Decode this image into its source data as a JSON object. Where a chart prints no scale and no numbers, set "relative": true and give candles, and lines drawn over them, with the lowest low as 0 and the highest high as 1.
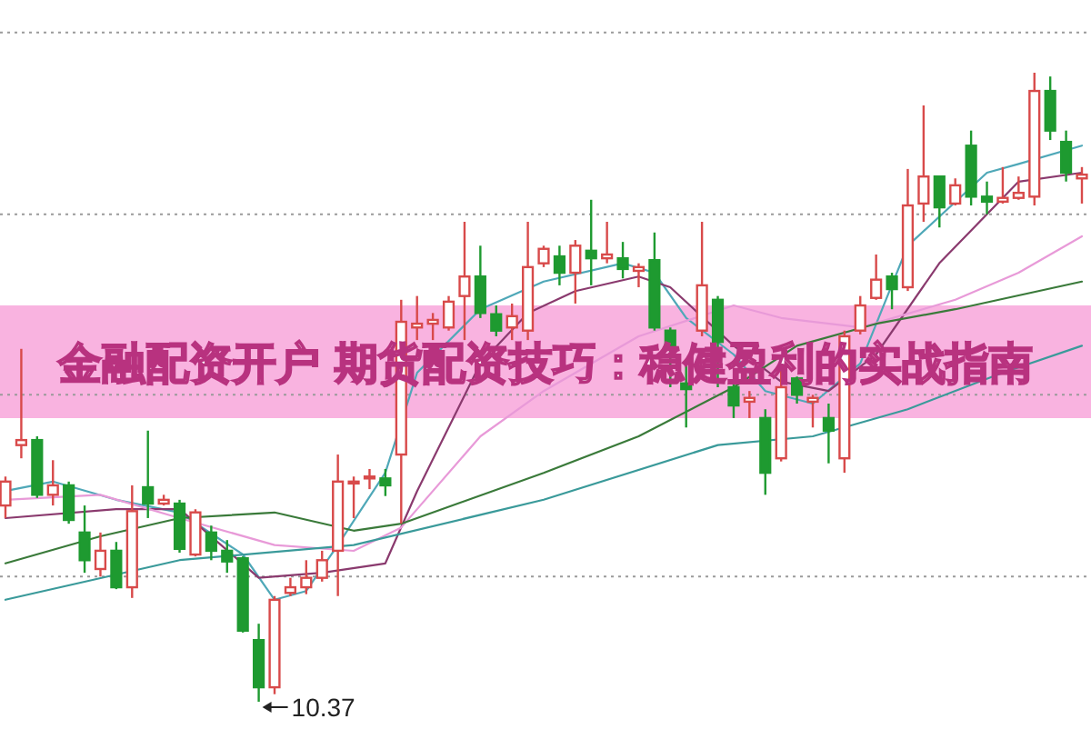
{
  "chart_data": {
    "type": "candlestick",
    "relative": true,
    "title": "金融配资开户 期货配资技巧：稳健盈利的实战指南",
    "ref_lines": [
      {
        "axis": "y",
        "value": 1.064,
        "color": "#9a9a9a",
        "line_style": "dotted"
      },
      {
        "axis": "y",
        "value": 0.775,
        "color": "#9a9a9a",
        "line_style": "dotted"
      },
      {
        "axis": "y",
        "value": 0.488,
        "color": "#9a9a9a",
        "line_style": "dotted"
      },
      {
        "axis": "y",
        "value": 0.199,
        "color": "#9a9a9a",
        "line_style": "dotted"
      }
    ],
    "categories": [
      null,
      null,
      null,
      null,
      null,
      null,
      null,
      null,
      null,
      null,
      null,
      null,
      null,
      null,
      null,
      null,
      null,
      null,
      null,
      null,
      null,
      null,
      null,
      null,
      null,
      null,
      null,
      null,
      null,
      null,
      null,
      null,
      null,
      null,
      null,
      null,
      null,
      null,
      null,
      null,
      null,
      null,
      null,
      null,
      null,
      null,
      null,
      null,
      null,
      null,
      null,
      null,
      null,
      null,
      null,
      null,
      null,
      null,
      null,
      null,
      null,
      null,
      null,
      null,
      null,
      null,
      null,
      null,
      null
    ],
    "ohlc": [
      [
        0.312,
        0.358,
        0.292,
        0.35
      ],
      [
        0.408,
        0.561,
        0.387,
        0.416
      ],
      [
        0.416,
        0.422,
        0.324,
        0.329
      ],
      [
        0.329,
        0.384,
        0.312,
        0.344
      ],
      [
        0.344,
        0.35,
        0.283,
        0.289
      ],
      [
        0.269,
        0.312,
        0.205,
        0.225
      ],
      [
        0.211,
        0.269,
        0.199,
        0.24
      ],
      [
        0.24,
        0.254,
        0.179,
        0.182
      ],
      [
        0.182,
        0.344,
        0.165,
        0.303
      ],
      [
        0.341,
        0.431,
        0.292,
        0.315
      ],
      [
        0.315,
        0.329,
        0.312,
        0.321
      ],
      [
        0.315,
        0.321,
        0.237,
        0.243
      ],
      [
        0.234,
        0.306,
        0.231,
        0.301
      ],
      [
        0.269,
        0.28,
        0.225,
        0.24
      ],
      [
        0.24,
        0.257,
        0.205,
        0.223
      ],
      [
        0.228,
        0.231,
        0.11,
        0.113
      ],
      [
        0.098,
        0.124,
        0,
        0.023
      ],
      [
        0.023,
        0.168,
        0.012,
        0.162
      ],
      [
        0.173,
        0.197,
        0.168,
        0.182
      ],
      [
        0.182,
        0.225,
        0.171,
        0.197
      ],
      [
        0.197,
        0.24,
        0.191,
        0.225
      ],
      [
        0.24,
        0.393,
        0.168,
        0.35
      ],
      [
        0.347,
        0.358,
        0.292,
        0.35
      ],
      [
        0.355,
        0.37,
        0.338,
        0.358
      ],
      [
        0.355,
        0.37,
        0.327,
        0.344
      ],
      [
        0.393,
        0.639,
        0.283,
        0.604
      ],
      [
        0.595,
        0.645,
        0.575,
        0.601
      ],
      [
        0.601,
        0.618,
        0.575,
        0.607
      ],
      [
        0.595,
        0.645,
        0.59,
        0.636
      ],
      [
        0.645,
        0.763,
        0.575,
        0.676
      ],
      [
        0.676,
        0.725,
        0.61,
        0.618
      ],
      [
        0.616,
        0.63,
        0.581,
        0.59
      ],
      [
        0.595,
        0.633,
        0.575,
        0.613
      ],
      [
        0.59,
        0.763,
        0.575,
        0.691
      ],
      [
        0.697,
        0.725,
        0.691,
        0.72
      ],
      [
        0.708,
        0.725,
        0.662,
        0.682
      ],
      [
        0.682,
        0.734,
        0.633,
        0.725
      ],
      [
        0.717,
        0.798,
        0.662,
        0.705
      ],
      [
        0.705,
        0.763,
        0.697,
        0.711
      ],
      [
        0.705,
        0.731,
        0.673,
        0.688
      ],
      [
        0.685,
        0.697,
        0.659,
        0.691
      ],
      [
        0.702,
        0.746,
        0.59,
        0.595
      ],
      [
        0.59,
        0.595,
        0.5,
        0.566
      ],
      [
        0.506,
        0.538,
        0.436,
        0.497
      ],
      [
        0.59,
        0.763,
        0.581,
        0.662
      ],
      [
        0.639,
        0.645,
        0.5,
        0.572
      ],
      [
        0.5,
        0.509,
        0.451,
        0.471
      ],
      [
        0.477,
        0.494,
        0.451,
        0.483
      ],
      [
        0.451,
        0.465,
        0.329,
        0.364
      ],
      [
        0.387,
        0.538,
        0.382,
        0.5
      ],
      [
        0.514,
        0.517,
        0.474,
        0.488
      ],
      [
        0.477,
        0.488,
        0.436,
        0.483
      ],
      [
        0.451,
        0.474,
        0.379,
        0.431
      ],
      [
        0.387,
        0.59,
        0.364,
        0.581
      ],
      [
        0.59,
        0.645,
        0.584,
        0.63
      ],
      [
        0.642,
        0.711,
        0.639,
        0.671
      ],
      [
        0.676,
        0.682,
        0.624,
        0.656
      ],
      [
        0.659,
        0.847,
        0.653,
        0.789
      ],
      [
        0.792,
        0.948,
        0.763,
        0.835
      ],
      [
        0.835,
        0.835,
        0.754,
        0.786
      ],
      [
        0.792,
        0.832,
        0.789,
        0.821
      ],
      [
        0.884,
        0.908,
        0.789,
        0.803
      ],
      [
        0.803,
        0.827,
        0.775,
        0.795
      ],
      [
        0.795,
        0.85,
        0.792,
        0.801
      ],
      [
        0.801,
        0.835,
        0.798,
        0.809
      ],
      [
        0.803,
        1,
        0.789,
        0.971
      ],
      [
        0.971,
        0.994,
        0.893,
        0.908
      ],
      [
        0.89,
        0.908,
        0.827,
        0.841
      ],
      [
        0.832,
        0.85,
        0.792,
        0.838
      ]
    ],
    "colors": [
      "#d84a4a",
      "#d84a4a",
      "#1e9a30",
      "#d84a4a",
      "#1e9a30",
      "#1e9a30",
      "#d84a4a",
      "#1e9a30",
      "#d84a4a",
      "#1e9a30",
      "#d84a4a",
      "#1e9a30",
      "#d84a4a",
      "#1e9a30",
      "#1e9a30",
      "#1e9a30",
      "#1e9a30",
      "#d84a4a",
      "#d84a4a",
      "#d84a4a",
      "#d84a4a",
      "#d84a4a",
      "#d84a4a",
      "#d84a4a",
      "#1e9a30",
      "#d84a4a",
      "#d84a4a",
      "#d84a4a",
      "#d84a4a",
      "#d84a4a",
      "#1e9a30",
      "#1e9a30",
      "#d84a4a",
      "#d84a4a",
      "#d84a4a",
      "#1e9a30",
      "#d84a4a",
      "#1e9a30",
      "#d84a4a",
      "#1e9a30",
      "#d84a4a",
      "#1e9a30",
      "#1e9a30",
      "#1e9a30",
      "#d84a4a",
      "#1e9a30",
      "#1e9a30",
      "#d84a4a",
      "#1e9a30",
      "#d84a4a",
      "#1e9a30",
      "#d84a4a",
      "#1e9a30",
      "#d84a4a",
      "#d84a4a",
      "#d84a4a",
      "#1e9a30",
      "#d84a4a",
      "#d84a4a",
      "#1e9a30",
      "#d84a4a",
      "#1e9a30",
      "#1e9a30",
      "#d84a4a",
      "#d84a4a",
      "#d84a4a",
      "#1e9a30",
      "#1e9a30",
      "#d84a4a"
    ],
    "series": [
      {
        "type": "line",
        "color": "#4fa8b8",
        "values": [
          0.335,
          null,
          null,
          0.35,
          null,
          null,
          null,
          0.321,
          null,
          null,
          null,
          0.301,
          null,
          null,
          null,
          0.234,
          null,
          0.162,
          null,
          0.176,
          null,
          0.249,
          null,
          null,
          0.364,
          null,
          0.523,
          null,
          null,
          null,
          0.624,
          null,
          null,
          null,
          0.668,
          null,
          null,
          null,
          null,
          0.697,
          null,
          0.682,
          null,
          0.61,
          null,
          null,
          0.552,
          null,
          0.494,
          null,
          null,
          0.474,
          null,
          null,
          0.538,
          null,
          null,
          0.725,
          null,
          null,
          null,
          null,
          0.841,
          null,
          0.855,
          null,
          null,
          null,
          0.884
        ]
      },
      {
        "type": "line",
        "color": "#8a3a6e",
        "values": [
          0.292,
          null,
          null,
          null,
          null,
          null,
          null,
          0.306,
          null,
          null,
          null,
          0.306,
          null,
          null,
          null,
          null,
          0.197,
          null,
          null,
          null,
          0.205,
          null,
          null,
          null,
          0.22,
          null,
          0.335,
          null,
          null,
          null,
          0.538,
          null,
          null,
          0.618,
          null,
          null,
          0.653,
          null,
          null,
          null,
          0.676,
          null,
          0.659,
          null,
          null,
          null,
          0.566,
          null,
          null,
          0.509,
          null,
          null,
          0.494,
          null,
          null,
          0.552,
          null,
          null,
          null,
          0.697,
          null,
          null,
          null,
          null,
          0.827,
          null,
          null,
          null,
          0.841
        ]
      },
      {
        "type": "line",
        "color": "#e89ad8",
        "values": [
          0.321,
          null,
          null,
          null,
          null,
          null,
          0.329,
          null,
          null,
          null,
          null,
          0.292,
          null,
          null,
          null,
          null,
          null,
          0.249,
          null,
          null,
          null,
          null,
          0.24,
          null,
          null,
          0.277,
          null,
          null,
          null,
          null,
          0.422,
          null,
          null,
          null,
          0.494,
          null,
          null,
          null,
          null,
          null,
          0.581,
          null,
          null,
          null,
          null,
          null,
          0.63,
          null,
          null,
          0.61,
          null,
          null,
          null,
          null,
          0.595,
          null,
          null,
          null,
          null,
          null,
          0.639,
          null,
          null,
          null,
          0.682,
          null,
          null,
          null,
          0.74
        ]
      },
      {
        "type": "line",
        "color": "#3a7a3a",
        "values": [
          0.22,
          null,
          null,
          null,
          null,
          null,
          0.263,
          null,
          null,
          null,
          null,
          0.292,
          null,
          null,
          null,
          null,
          null,
          0.301,
          null,
          null,
          null,
          null,
          0.272,
          null,
          null,
          0.283,
          null,
          null,
          null,
          null,
          null,
          null,
          null,
          null,
          0.364,
          null,
          null,
          null,
          null,
          null,
          0.422,
          null,
          null,
          null,
          null,
          null,
          0.5,
          null,
          null,
          null,
          0.566,
          null,
          null,
          null,
          null,
          0.601,
          null,
          null,
          null,
          null,
          0.624,
          null,
          null,
          null,
          null,
          null,
          null,
          null,
          0.668
        ]
      },
      {
        "type": "line",
        "color": "#3a9a9a",
        "values": [
          0.162,
          null,
          null,
          null,
          null,
          null,
          null,
          null,
          null,
          null,
          null,
          0.225,
          null,
          null,
          null,
          null,
          null,
          null,
          null,
          null,
          null,
          null,
          0.249,
          null,
          null,
          null,
          null,
          null,
          null,
          null,
          null,
          null,
          null,
          null,
          0.321,
          null,
          null,
          null,
          null,
          null,
          null,
          null,
          null,
          null,
          null,
          0.408,
          null,
          null,
          null,
          null,
          null,
          0.422,
          null,
          null,
          null,
          null,
          null,
          0.465,
          null,
          null,
          null,
          null,
          null,
          0.523,
          null,
          null,
          null,
          null,
          0.566
        ]
      }
    ],
    "annotations": [
      "10.37"
    ]
  }
}
